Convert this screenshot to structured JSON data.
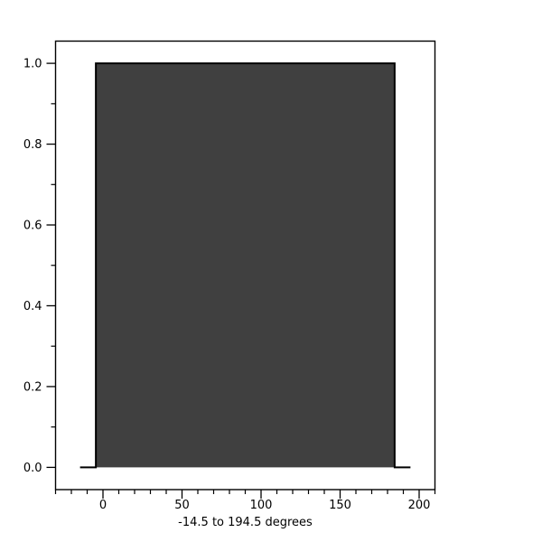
{
  "page": {
    "background_color": "#ffffff"
  },
  "chart_data": {
    "type": "area",
    "subtype": "step-boxcar",
    "title": "",
    "xlabel": "-14.5 to 194.5 degrees",
    "ylabel": "",
    "xlim": [
      -30,
      210
    ],
    "ylim": [
      -0.055,
      1.055
    ],
    "grid": false,
    "legend": false,
    "x_major_ticks": [
      0,
      50,
      100,
      150,
      200
    ],
    "x_major_tick_labels": [
      "0",
      "50",
      "100",
      "150",
      "200"
    ],
    "x_minor_tick_step": 10,
    "y_major_ticks": [
      0,
      0.2,
      0.4,
      0.6,
      0.8,
      1.0
    ],
    "y_major_tick_labels": [
      "0.0",
      "0.2",
      "0.4",
      "0.6",
      "0.8",
      "1.0"
    ],
    "y_minor_tick_step": 0.1,
    "step_points": [
      [
        -14.5,
        0
      ],
      [
        -4.5,
        0
      ],
      [
        -4.5,
        1.0
      ],
      [
        184.5,
        1.0
      ],
      [
        184.5,
        0
      ],
      [
        194.5,
        0
      ]
    ],
    "segments": [
      {
        "x_start": -14.5,
        "x_end": -4.5,
        "y": 0
      },
      {
        "x_start": -4.5,
        "x_end": 184.5,
        "y": 1.0
      },
      {
        "x_start": 184.5,
        "x_end": 194.5,
        "y": 0
      }
    ],
    "fill_color": "#404040",
    "line_color": "#000000",
    "frame_color": "#000000",
    "background": "#ffffff"
  }
}
